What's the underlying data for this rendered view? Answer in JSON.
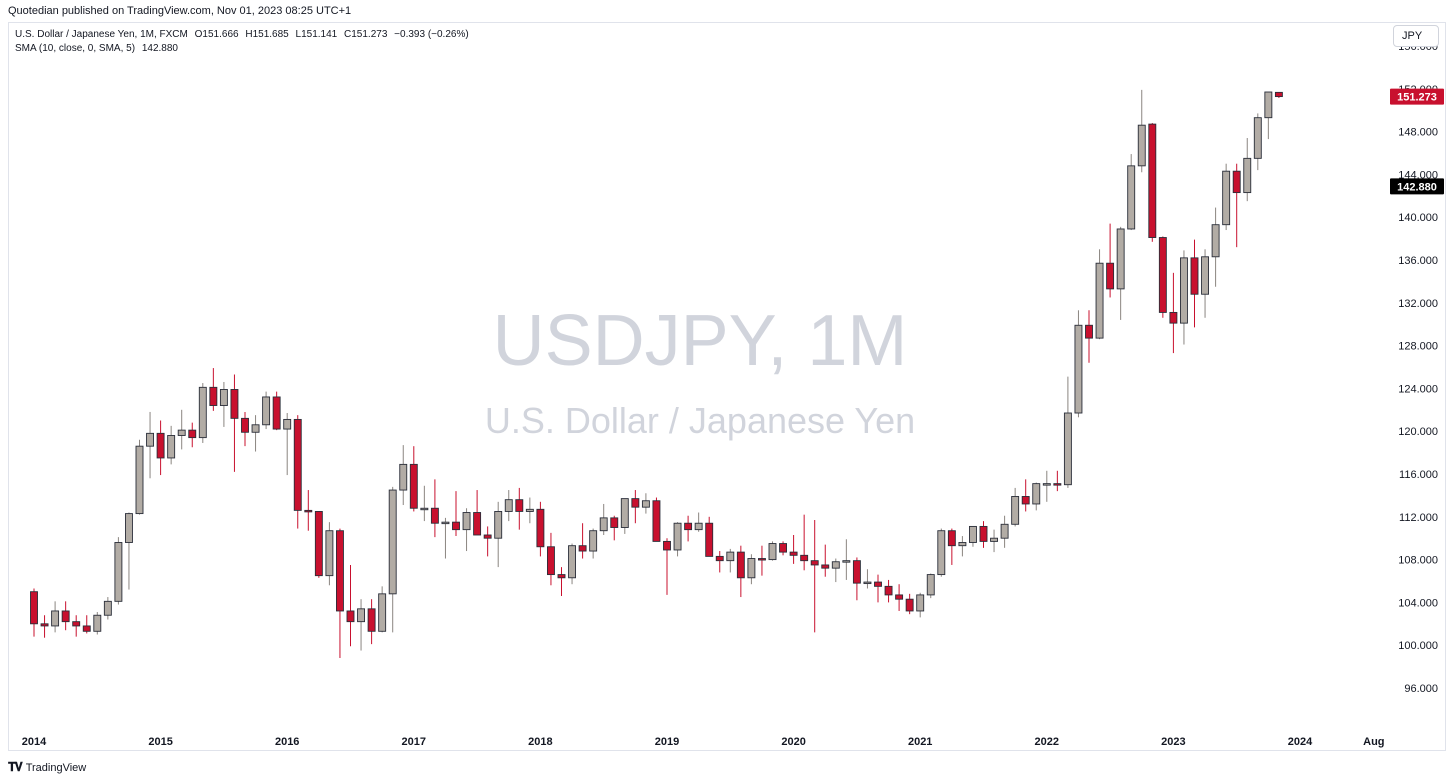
{
  "publish_line": "Quotedian published on TradingView.com, Nov 01, 2023 08:25 UTC+1",
  "legend": {
    "symbol_line": "U.S. Dollar / Japanese Yen, 1M, FXCM",
    "open": "O151.666",
    "high": "H151.685",
    "low": "L151.141",
    "close": "C151.273",
    "change": "−0.393 (−0.26%)",
    "sma_label": "SMA (10, close, 0, SMA, 5)",
    "sma_value": "142.880"
  },
  "currency_button": "JPY",
  "watermark": {
    "symbol": "USDJPY, 1M",
    "description": "U.S. Dollar / Japanese Yen"
  },
  "footer": {
    "brand": "TradingView"
  },
  "colors": {
    "up_fill": "#b2aca5",
    "down_fill": "#c8102e",
    "candle_border": "#2a2e39",
    "watermark": "#d1d4dc",
    "price_label_bg": "#c8102e",
    "sma_label_bg": "#000000",
    "axis_text": "#131722"
  },
  "chart_data": {
    "type": "candlestick",
    "interval": "1M",
    "ylim": [
      94,
      156
    ],
    "y_ticks": [
      "96.000",
      "100.000",
      "104.000",
      "108.000",
      "112.000",
      "116.000",
      "120.000",
      "124.000",
      "128.000",
      "132.000",
      "136.000",
      "140.000",
      "144.000",
      "148.000",
      "152.000",
      "156.000"
    ],
    "x_ticks": [
      "2014",
      "2015",
      "2016",
      "2017",
      "2018",
      "2019",
      "2020",
      "2021",
      "2022",
      "2023",
      "2024",
      "Aug"
    ],
    "last_price_label": "151.273",
    "sma_label": "142.880",
    "candles": [
      {
        "d": "2014-01",
        "o": 105.0,
        "h": 105.3,
        "l": 100.8,
        "c": 102.0
      },
      {
        "d": "2014-02",
        "o": 102.0,
        "h": 102.8,
        "l": 100.7,
        "c": 101.8
      },
      {
        "d": "2014-03",
        "o": 101.8,
        "h": 104.1,
        "l": 101.2,
        "c": 103.2
      },
      {
        "d": "2014-04",
        "o": 103.2,
        "h": 104.1,
        "l": 101.4,
        "c": 102.2
      },
      {
        "d": "2014-05",
        "o": 102.2,
        "h": 102.8,
        "l": 100.8,
        "c": 101.8
      },
      {
        "d": "2014-06",
        "o": 101.8,
        "h": 102.8,
        "l": 101.1,
        "c": 101.3
      },
      {
        "d": "2014-07",
        "o": 101.3,
        "h": 103.1,
        "l": 101.0,
        "c": 102.8
      },
      {
        "d": "2014-08",
        "o": 102.8,
        "h": 104.5,
        "l": 102.4,
        "c": 104.1
      },
      {
        "d": "2014-09",
        "o": 104.1,
        "h": 110.1,
        "l": 103.8,
        "c": 109.6
      },
      {
        "d": "2014-10",
        "o": 109.6,
        "h": 112.4,
        "l": 105.2,
        "c": 112.3
      },
      {
        "d": "2014-11",
        "o": 112.3,
        "h": 119.2,
        "l": 112.2,
        "c": 118.6
      },
      {
        "d": "2014-12",
        "o": 118.6,
        "h": 121.8,
        "l": 115.6,
        "c": 119.8
      },
      {
        "d": "2015-01",
        "o": 119.8,
        "h": 121.0,
        "l": 115.9,
        "c": 117.5
      },
      {
        "d": "2015-02",
        "o": 117.5,
        "h": 120.5,
        "l": 116.9,
        "c": 119.6
      },
      {
        "d": "2015-03",
        "o": 119.6,
        "h": 122.0,
        "l": 118.3,
        "c": 120.1
      },
      {
        "d": "2015-04",
        "o": 120.1,
        "h": 120.8,
        "l": 118.5,
        "c": 119.4
      },
      {
        "d": "2015-05",
        "o": 119.4,
        "h": 124.5,
        "l": 118.9,
        "c": 124.1
      },
      {
        "d": "2015-06",
        "o": 124.1,
        "h": 125.9,
        "l": 121.9,
        "c": 122.4
      },
      {
        "d": "2015-07",
        "o": 122.4,
        "h": 124.6,
        "l": 120.4,
        "c": 123.9
      },
      {
        "d": "2015-08",
        "o": 123.9,
        "h": 125.3,
        "l": 116.2,
        "c": 121.2
      },
      {
        "d": "2015-09",
        "o": 121.2,
        "h": 121.8,
        "l": 118.6,
        "c": 119.9
      },
      {
        "d": "2015-10",
        "o": 119.9,
        "h": 121.5,
        "l": 118.1,
        "c": 120.6
      },
      {
        "d": "2015-11",
        "o": 120.6,
        "h": 123.7,
        "l": 120.2,
        "c": 123.2
      },
      {
        "d": "2015-12",
        "o": 123.2,
        "h": 123.7,
        "l": 120.1,
        "c": 120.2
      },
      {
        "d": "2016-01",
        "o": 120.2,
        "h": 121.7,
        "l": 115.9,
        "c": 121.1
      },
      {
        "d": "2016-02",
        "o": 121.1,
        "h": 121.5,
        "l": 110.9,
        "c": 112.6
      },
      {
        "d": "2016-03",
        "o": 112.6,
        "h": 114.5,
        "l": 110.7,
        "c": 112.5
      },
      {
        "d": "2016-04",
        "o": 112.5,
        "h": 112.5,
        "l": 106.3,
        "c": 106.5
      },
      {
        "d": "2016-05",
        "o": 106.5,
        "h": 111.5,
        "l": 105.6,
        "c": 110.7
      },
      {
        "d": "2016-06",
        "o": 110.7,
        "h": 110.9,
        "l": 98.8,
        "c": 103.2
      },
      {
        "d": "2016-07",
        "o": 103.2,
        "h": 107.5,
        "l": 99.9,
        "c": 102.2
      },
      {
        "d": "2016-08",
        "o": 102.2,
        "h": 104.3,
        "l": 99.5,
        "c": 103.4
      },
      {
        "d": "2016-09",
        "o": 103.4,
        "h": 104.3,
        "l": 100.1,
        "c": 101.3
      },
      {
        "d": "2016-10",
        "o": 101.3,
        "h": 105.5,
        "l": 101.2,
        "c": 104.8
      },
      {
        "d": "2016-11",
        "o": 104.8,
        "h": 114.8,
        "l": 101.2,
        "c": 114.5
      },
      {
        "d": "2016-12",
        "o": 114.5,
        "h": 118.7,
        "l": 113.1,
        "c": 116.9
      },
      {
        "d": "2017-01",
        "o": 116.9,
        "h": 118.6,
        "l": 112.5,
        "c": 112.8
      },
      {
        "d": "2017-02",
        "o": 112.8,
        "h": 114.9,
        "l": 111.6,
        "c": 112.8
      },
      {
        "d": "2017-03",
        "o": 112.8,
        "h": 115.5,
        "l": 110.1,
        "c": 111.4
      },
      {
        "d": "2017-04",
        "o": 111.4,
        "h": 111.9,
        "l": 108.1,
        "c": 111.5
      },
      {
        "d": "2017-05",
        "o": 111.5,
        "h": 114.4,
        "l": 110.2,
        "c": 110.8
      },
      {
        "d": "2017-06",
        "o": 110.8,
        "h": 112.8,
        "l": 108.8,
        "c": 112.4
      },
      {
        "d": "2017-07",
        "o": 112.4,
        "h": 114.5,
        "l": 110.6,
        "c": 110.3
      },
      {
        "d": "2017-08",
        "o": 110.3,
        "h": 111.1,
        "l": 108.3,
        "c": 110.0
      },
      {
        "d": "2017-09",
        "o": 110.0,
        "h": 113.4,
        "l": 107.3,
        "c": 112.5
      },
      {
        "d": "2017-10",
        "o": 112.5,
        "h": 114.5,
        "l": 111.6,
        "c": 113.6
      },
      {
        "d": "2017-11",
        "o": 113.6,
        "h": 114.7,
        "l": 110.8,
        "c": 112.5
      },
      {
        "d": "2017-12",
        "o": 112.5,
        "h": 113.8,
        "l": 111.4,
        "c": 112.7
      },
      {
        "d": "2018-01",
        "o": 112.7,
        "h": 113.4,
        "l": 108.3,
        "c": 109.2
      },
      {
        "d": "2018-02",
        "o": 109.2,
        "h": 110.5,
        "l": 105.6,
        "c": 106.6
      },
      {
        "d": "2018-03",
        "o": 106.6,
        "h": 107.3,
        "l": 104.6,
        "c": 106.3
      },
      {
        "d": "2018-04",
        "o": 106.3,
        "h": 109.5,
        "l": 105.7,
        "c": 109.3
      },
      {
        "d": "2018-05",
        "o": 109.3,
        "h": 111.4,
        "l": 108.1,
        "c": 108.8
      },
      {
        "d": "2018-06",
        "o": 108.8,
        "h": 110.9,
        "l": 108.1,
        "c": 110.7
      },
      {
        "d": "2018-07",
        "o": 110.7,
        "h": 113.2,
        "l": 110.3,
        "c": 111.9
      },
      {
        "d": "2018-08",
        "o": 111.9,
        "h": 112.1,
        "l": 109.8,
        "c": 111.0
      },
      {
        "d": "2018-09",
        "o": 111.0,
        "h": 113.7,
        "l": 110.4,
        "c": 113.7
      },
      {
        "d": "2018-10",
        "o": 113.7,
        "h": 114.5,
        "l": 111.4,
        "c": 112.9
      },
      {
        "d": "2018-11",
        "o": 112.9,
        "h": 114.2,
        "l": 112.3,
        "c": 113.5
      },
      {
        "d": "2018-12",
        "o": 113.5,
        "h": 113.8,
        "l": 109.8,
        "c": 109.7
      },
      {
        "d": "2019-01",
        "o": 109.7,
        "h": 110.0,
        "l": 104.7,
        "c": 108.9
      },
      {
        "d": "2019-02",
        "o": 108.9,
        "h": 111.5,
        "l": 108.3,
        "c": 111.4
      },
      {
        "d": "2019-03",
        "o": 111.4,
        "h": 112.1,
        "l": 109.7,
        "c": 110.8
      },
      {
        "d": "2019-04",
        "o": 110.8,
        "h": 112.4,
        "l": 110.6,
        "c": 111.4
      },
      {
        "d": "2019-05",
        "o": 111.4,
        "h": 112.0,
        "l": 108.3,
        "c": 108.3
      },
      {
        "d": "2019-06",
        "o": 108.3,
        "h": 108.8,
        "l": 106.8,
        "c": 107.9
      },
      {
        "d": "2019-07",
        "o": 107.9,
        "h": 109.0,
        "l": 106.8,
        "c": 108.7
      },
      {
        "d": "2019-08",
        "o": 108.7,
        "h": 109.3,
        "l": 104.5,
        "c": 106.3
      },
      {
        "d": "2019-09",
        "o": 106.3,
        "h": 108.5,
        "l": 105.7,
        "c": 108.1
      },
      {
        "d": "2019-10",
        "o": 108.1,
        "h": 109.3,
        "l": 106.5,
        "c": 108.0
      },
      {
        "d": "2019-11",
        "o": 108.0,
        "h": 109.7,
        "l": 107.9,
        "c": 109.5
      },
      {
        "d": "2019-12",
        "o": 109.5,
        "h": 109.7,
        "l": 108.4,
        "c": 108.7
      },
      {
        "d": "2020-01",
        "o": 108.7,
        "h": 110.3,
        "l": 107.6,
        "c": 108.4
      },
      {
        "d": "2020-02",
        "o": 108.4,
        "h": 112.2,
        "l": 107.0,
        "c": 107.9
      },
      {
        "d": "2020-03",
        "o": 107.9,
        "h": 111.7,
        "l": 101.2,
        "c": 107.5
      },
      {
        "d": "2020-04",
        "o": 107.5,
        "h": 109.4,
        "l": 106.4,
        "c": 107.2
      },
      {
        "d": "2020-05",
        "o": 107.2,
        "h": 108.1,
        "l": 105.9,
        "c": 107.8
      },
      {
        "d": "2020-06",
        "o": 107.8,
        "h": 109.9,
        "l": 106.1,
        "c": 107.9
      },
      {
        "d": "2020-07",
        "o": 107.9,
        "h": 108.2,
        "l": 104.2,
        "c": 105.8
      },
      {
        "d": "2020-08",
        "o": 105.8,
        "h": 107.1,
        "l": 105.3,
        "c": 105.9
      },
      {
        "d": "2020-09",
        "o": 105.9,
        "h": 106.6,
        "l": 104.0,
        "c": 105.5
      },
      {
        "d": "2020-10",
        "o": 105.5,
        "h": 106.1,
        "l": 104.0,
        "c": 104.7
      },
      {
        "d": "2020-11",
        "o": 104.7,
        "h": 105.7,
        "l": 103.2,
        "c": 104.3
      },
      {
        "d": "2020-12",
        "o": 104.3,
        "h": 104.8,
        "l": 102.9,
        "c": 103.2
      },
      {
        "d": "2021-01",
        "o": 103.2,
        "h": 104.9,
        "l": 102.6,
        "c": 104.7
      },
      {
        "d": "2021-02",
        "o": 104.7,
        "h": 106.7,
        "l": 104.4,
        "c": 106.6
      },
      {
        "d": "2021-03",
        "o": 106.6,
        "h": 110.9,
        "l": 106.4,
        "c": 110.7
      },
      {
        "d": "2021-04",
        "o": 110.7,
        "h": 110.9,
        "l": 107.5,
        "c": 109.3
      },
      {
        "d": "2021-05",
        "o": 109.3,
        "h": 110.2,
        "l": 108.3,
        "c": 109.6
      },
      {
        "d": "2021-06",
        "o": 109.6,
        "h": 111.1,
        "l": 109.2,
        "c": 111.1
      },
      {
        "d": "2021-07",
        "o": 111.1,
        "h": 111.6,
        "l": 109.1,
        "c": 109.7
      },
      {
        "d": "2021-08",
        "o": 109.7,
        "h": 110.8,
        "l": 108.7,
        "c": 110.0
      },
      {
        "d": "2021-09",
        "o": 110.0,
        "h": 112.1,
        "l": 109.1,
        "c": 111.3
      },
      {
        "d": "2021-10",
        "o": 111.3,
        "h": 114.7,
        "l": 111.1,
        "c": 113.9
      },
      {
        "d": "2021-11",
        "o": 113.9,
        "h": 115.5,
        "l": 112.5,
        "c": 113.2
      },
      {
        "d": "2021-12",
        "o": 113.2,
        "h": 115.2,
        "l": 112.6,
        "c": 115.1
      },
      {
        "d": "2022-01",
        "o": 115.1,
        "h": 116.3,
        "l": 113.4,
        "c": 115.1
      },
      {
        "d": "2022-02",
        "o": 115.1,
        "h": 116.3,
        "l": 114.4,
        "c": 115.0
      },
      {
        "d": "2022-03",
        "o": 115.0,
        "h": 125.1,
        "l": 114.7,
        "c": 121.7
      },
      {
        "d": "2022-04",
        "o": 121.7,
        "h": 131.3,
        "l": 121.3,
        "c": 129.9
      },
      {
        "d": "2022-05",
        "o": 129.9,
        "h": 131.3,
        "l": 126.4,
        "c": 128.7
      },
      {
        "d": "2022-06",
        "o": 128.7,
        "h": 137.0,
        "l": 128.6,
        "c": 135.7
      },
      {
        "d": "2022-07",
        "o": 135.7,
        "h": 139.4,
        "l": 132.5,
        "c": 133.3
      },
      {
        "d": "2022-08",
        "o": 133.3,
        "h": 139.1,
        "l": 130.4,
        "c": 138.9
      },
      {
        "d": "2022-09",
        "o": 138.9,
        "h": 145.9,
        "l": 138.8,
        "c": 144.8
      },
      {
        "d": "2022-10",
        "o": 144.8,
        "h": 151.9,
        "l": 144.2,
        "c": 148.6
      },
      {
        "d": "2022-11",
        "o": 148.7,
        "h": 148.8,
        "l": 137.7,
        "c": 138.1
      },
      {
        "d": "2022-12",
        "o": 138.1,
        "h": 138.2,
        "l": 130.6,
        "c": 131.1
      },
      {
        "d": "2023-01",
        "o": 131.1,
        "h": 134.8,
        "l": 127.3,
        "c": 130.1
      },
      {
        "d": "2023-02",
        "o": 130.1,
        "h": 136.9,
        "l": 128.1,
        "c": 136.2
      },
      {
        "d": "2023-03",
        "o": 136.2,
        "h": 137.9,
        "l": 129.7,
        "c": 132.8
      },
      {
        "d": "2023-04",
        "o": 132.8,
        "h": 137.0,
        "l": 130.6,
        "c": 136.3
      },
      {
        "d": "2023-05",
        "o": 136.3,
        "h": 140.9,
        "l": 133.5,
        "c": 139.3
      },
      {
        "d": "2023-06",
        "o": 139.3,
        "h": 145.0,
        "l": 138.8,
        "c": 144.3
      },
      {
        "d": "2023-07",
        "o": 144.3,
        "h": 145.0,
        "l": 137.2,
        "c": 142.3
      },
      {
        "d": "2023-08",
        "o": 142.3,
        "h": 147.4,
        "l": 141.5,
        "c": 145.5
      },
      {
        "d": "2023-09",
        "o": 145.5,
        "h": 149.7,
        "l": 144.4,
        "c": 149.3
      },
      {
        "d": "2023-10",
        "o": 149.3,
        "h": 151.7,
        "l": 147.3,
        "c": 151.7
      },
      {
        "d": "2023-11",
        "o": 151.666,
        "h": 151.685,
        "l": 151.141,
        "c": 151.273
      }
    ]
  }
}
